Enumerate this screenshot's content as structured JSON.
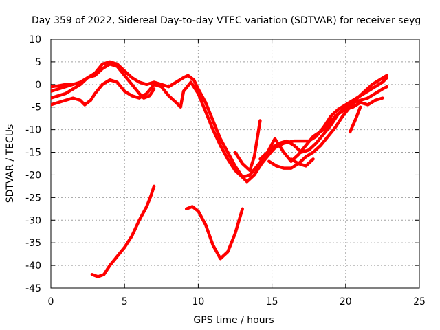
{
  "chart_data": {
    "type": "line",
    "title": "Day 359 of 2022, Sidereal Day-to-day VTEC variation (SDTVAR) for receiver seyg",
    "xlabel": "GPS time / hours",
    "ylabel": "SDTVAR / TECUs",
    "xlim": [
      0,
      25
    ],
    "ylim": [
      -45,
      10
    ],
    "xticks": [
      0,
      5,
      10,
      15,
      20,
      25
    ],
    "yticks": [
      10,
      5,
      0,
      -5,
      -10,
      -15,
      -20,
      -25,
      -30,
      -35,
      -40,
      -45
    ],
    "grid": true,
    "line_color": "#ff0000",
    "series": [
      {
        "name": "track-1",
        "points": [
          [
            0,
            -1.5
          ],
          [
            1,
            -0.5
          ],
          [
            2,
            0.5
          ],
          [
            3,
            2.5
          ],
          [
            3.5,
            4.5
          ],
          [
            4,
            5
          ],
          [
            4.5,
            4.5
          ],
          [
            5,
            3
          ],
          [
            5.5,
            1.5
          ],
          [
            6,
            0.5
          ],
          [
            6.5,
            0
          ],
          [
            7,
            0.5
          ],
          [
            7.5,
            0
          ],
          [
            8,
            -0.5
          ],
          [
            8.5,
            0.5
          ],
          [
            9,
            1.5
          ],
          [
            9.3,
            2
          ],
          [
            9.7,
            1
          ],
          [
            10,
            -1
          ],
          [
            10.5,
            -4
          ],
          [
            11,
            -8
          ],
          [
            11.5,
            -12
          ],
          [
            12,
            -15
          ],
          [
            12.5,
            -18
          ],
          [
            13,
            -20.5
          ],
          [
            13.3,
            -21.5
          ],
          [
            13.8,
            -20
          ],
          [
            14.3,
            -17.5
          ],
          [
            14.8,
            -15.5
          ],
          [
            15.2,
            -14
          ],
          [
            15.8,
            -13
          ],
          [
            16.5,
            -12.5
          ],
          [
            17.5,
            -12.5
          ],
          [
            18,
            -11.5
          ],
          [
            18.5,
            -9.5
          ],
          [
            19,
            -7
          ],
          [
            19.5,
            -5.5
          ],
          [
            20,
            -4.5
          ],
          [
            20.5,
            -3.5
          ],
          [
            21,
            -2.5
          ],
          [
            21.5,
            -1.5
          ],
          [
            22,
            -0.5
          ],
          [
            22.5,
            0.5
          ],
          [
            22.8,
            1.5
          ]
        ]
      },
      {
        "name": "track-2",
        "points": [
          [
            0,
            -3
          ],
          [
            0.5,
            -2.5
          ],
          [
            1,
            -2
          ],
          [
            1.5,
            -1
          ],
          [
            2,
            0
          ],
          [
            2.5,
            1.5
          ],
          [
            3,
            2
          ],
          [
            3.5,
            3.5
          ],
          [
            4,
            4.5
          ],
          [
            4.5,
            4
          ],
          [
            5,
            2
          ],
          [
            5.5,
            0
          ],
          [
            6,
            -2
          ],
          [
            6.3,
            -3
          ],
          [
            6.7,
            -2.5
          ],
          [
            7,
            -1
          ]
        ]
      },
      {
        "name": "track-3",
        "points": [
          [
            0,
            -4.5
          ],
          [
            0.5,
            -4
          ],
          [
            1,
            -3.5
          ],
          [
            1.5,
            -3
          ],
          [
            2,
            -3.5
          ],
          [
            2.3,
            -4.5
          ],
          [
            2.7,
            -3.5
          ],
          [
            3,
            -2
          ],
          [
            3.5,
            0
          ],
          [
            4,
            1
          ],
          [
            4.5,
            0.5
          ],
          [
            5,
            -1.5
          ],
          [
            5.5,
            -2.5
          ],
          [
            6,
            -3
          ],
          [
            6.5,
            -2
          ],
          [
            7,
            0
          ],
          [
            7.5,
            -0.5
          ],
          [
            8,
            -2.5
          ],
          [
            8.5,
            -4
          ],
          [
            8.8,
            -5
          ],
          [
            9,
            -1.5
          ],
          [
            9.5,
            0.5
          ],
          [
            10,
            -2
          ],
          [
            10.5,
            -6
          ],
          [
            11,
            -10
          ],
          [
            11.5,
            -13.5
          ],
          [
            12,
            -16.5
          ],
          [
            12.5,
            -19
          ],
          [
            13,
            -20.5
          ],
          [
            13.5,
            -20
          ],
          [
            14,
            -18
          ],
          [
            14.5,
            -16
          ],
          [
            15,
            -14
          ],
          [
            15.5,
            -13
          ],
          [
            16,
            -12.5
          ],
          [
            16.5,
            -13.5
          ],
          [
            17,
            -15
          ],
          [
            17.5,
            -14.5
          ],
          [
            18,
            -13
          ],
          [
            18.5,
            -11
          ],
          [
            19,
            -9
          ],
          [
            19.5,
            -6.5
          ],
          [
            20,
            -5
          ],
          [
            20.5,
            -4
          ],
          [
            21,
            -3.5
          ],
          [
            21.5,
            -3
          ],
          [
            22,
            -2
          ],
          [
            22.5,
            -1
          ],
          [
            22.8,
            -0.5
          ]
        ]
      },
      {
        "name": "track-4",
        "points": [
          [
            0,
            -0.5
          ],
          [
            0.5,
            -0.3
          ],
          [
            1,
            0
          ],
          [
            1.3,
            0
          ]
        ]
      },
      {
        "name": "track-5",
        "points": [
          [
            2.8,
            -42
          ],
          [
            3.2,
            -42.5
          ],
          [
            3.6,
            -42
          ],
          [
            4,
            -40
          ],
          [
            4.5,
            -38
          ],
          [
            5,
            -36
          ],
          [
            5.5,
            -33.5
          ],
          [
            6,
            -30
          ],
          [
            6.5,
            -27
          ],
          [
            6.8,
            -24.5
          ],
          [
            7,
            -22.5
          ]
        ]
      },
      {
        "name": "track-6",
        "points": [
          [
            9.2,
            -27.5
          ],
          [
            9.6,
            -27
          ],
          [
            10,
            -28
          ],
          [
            10.5,
            -31
          ],
          [
            11,
            -35.5
          ],
          [
            11.5,
            -38.5
          ],
          [
            12,
            -37
          ],
          [
            12.5,
            -33
          ],
          [
            13,
            -27.5
          ]
        ]
      },
      {
        "name": "track-7",
        "points": [
          [
            12.5,
            -15
          ],
          [
            13,
            -17.5
          ],
          [
            13.5,
            -19
          ],
          [
            13.8,
            -16
          ],
          [
            14.2,
            -8
          ]
        ]
      },
      {
        "name": "track-8",
        "points": [
          [
            14.2,
            -16.5
          ],
          [
            14.7,
            -15
          ],
          [
            15.2,
            -12
          ],
          [
            15.8,
            -15
          ],
          [
            16.3,
            -17
          ],
          [
            16.8,
            -15.5
          ],
          [
            17.3,
            -13.5
          ],
          [
            17.8,
            -11.5
          ],
          [
            18.5,
            -10
          ],
          [
            19,
            -8
          ],
          [
            19.5,
            -6.5
          ],
          [
            20,
            -5.5
          ],
          [
            20.5,
            -5
          ],
          [
            21,
            -4
          ],
          [
            21.5,
            -4.5
          ],
          [
            22,
            -3.5
          ],
          [
            22.5,
            -3
          ]
        ]
      },
      {
        "name": "track-9",
        "points": [
          [
            14.8,
            -17
          ],
          [
            15.3,
            -18
          ],
          [
            15.8,
            -18.5
          ],
          [
            16.3,
            -18.5
          ],
          [
            16.8,
            -17.5
          ],
          [
            17.3,
            -16
          ],
          [
            17.8,
            -15
          ],
          [
            18.3,
            -13.5
          ],
          [
            18.8,
            -11.5
          ],
          [
            19.3,
            -9.5
          ],
          [
            19.8,
            -7
          ],
          [
            20.3,
            -5
          ],
          [
            20.8,
            -3
          ],
          [
            21.3,
            -1.5
          ],
          [
            21.8,
            0
          ],
          [
            22.3,
            1
          ],
          [
            22.8,
            2
          ]
        ]
      },
      {
        "name": "track-10",
        "points": [
          [
            20.3,
            -10.5
          ],
          [
            20.7,
            -7.5
          ],
          [
            21,
            -5
          ]
        ]
      },
      {
        "name": "track-11",
        "points": [
          [
            16.3,
            -16.5
          ],
          [
            16.8,
            -17.5
          ],
          [
            17.3,
            -18
          ],
          [
            17.8,
            -16.5
          ]
        ]
      }
    ]
  }
}
